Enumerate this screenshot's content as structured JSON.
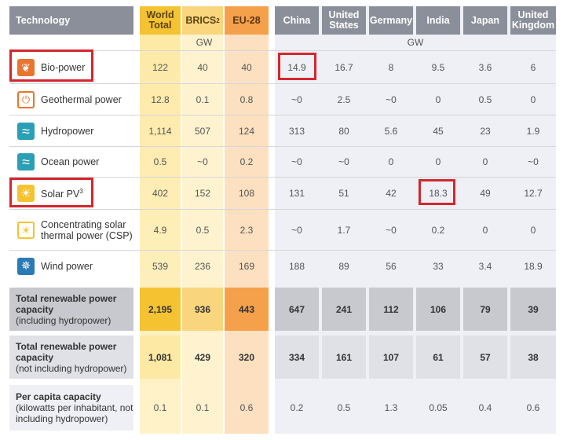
{
  "headers": {
    "technology": "Technology",
    "world": "World Total",
    "brics": "BRICS",
    "brics_sup": "2",
    "eu": "EU-28",
    "countries": [
      "China",
      "United States",
      "Germany",
      "India",
      "Japan",
      "United Kingdom"
    ]
  },
  "units": {
    "left": "GW",
    "right": "GW"
  },
  "rows": [
    {
      "label": "Bio-power",
      "sup": "",
      "icon": "leaf-icon",
      "values": [
        "122",
        "40",
        "40",
        "14.9",
        "16.7",
        "8",
        "9.5",
        "3.6",
        "6"
      ]
    },
    {
      "label": "Geothermal power",
      "sup": "",
      "icon": "geothermal-icon",
      "values": [
        "12.8",
        "0.1",
        "0.8",
        "~0",
        "2.5",
        "~0",
        "0",
        "0.5",
        "0"
      ]
    },
    {
      "label": "Hydropower",
      "sup": "",
      "icon": "water-waves-icon",
      "values": [
        "1,114",
        "507",
        "124",
        "313",
        "80",
        "5.6",
        "45",
        "23",
        "1.9"
      ]
    },
    {
      "label": "Ocean power",
      "sup": "",
      "icon": "ocean-waves-icon",
      "values": [
        "0.5",
        "~0",
        "0.2",
        "~0",
        "~0",
        "0",
        "0",
        "0",
        "~0"
      ]
    },
    {
      "label": "Solar PV",
      "sup": "3",
      "icon": "sun-icon",
      "values": [
        "402",
        "152",
        "108",
        "131",
        "51",
        "42",
        "18.3",
        "49",
        "12.7"
      ]
    },
    {
      "label": "Concentrating solar thermal power (CSP)",
      "sup": "",
      "icon": "csp-sun-icon",
      "values": [
        "4.9",
        "0.5",
        "2.3",
        "~0",
        "1.7",
        "~0",
        "0.2",
        "0",
        "0"
      ]
    },
    {
      "label": "Wind power",
      "sup": "",
      "icon": "wind-turbine-icon",
      "values": [
        "539",
        "236",
        "169",
        "188",
        "89",
        "56",
        "33",
        "3.4",
        "18.9"
      ]
    }
  ],
  "totals": [
    {
      "title": "Total renewable power capacity",
      "note": "(including hydropower)",
      "values": [
        "2,195",
        "936",
        "443",
        "647",
        "241",
        "112",
        "106",
        "79",
        "39"
      ]
    },
    {
      "title": "Total renewable power capacity",
      "note": "(not including hydropower)",
      "values": [
        "1,081",
        "429",
        "320",
        "334",
        "161",
        "107",
        "61",
        "57",
        "38"
      ]
    },
    {
      "title": "Per capita capacity",
      "note": "(kilowatts per inhabitant, not including hydropower)",
      "values": [
        "0.1",
        "0.1",
        "0.6",
        "0.2",
        "0.5",
        "1.3",
        "0.05",
        "0.4",
        "0.6"
      ]
    }
  ],
  "colors": {
    "highlight": "#d3272e",
    "world": "#f5c332",
    "brics": "#f9d57d",
    "eu": "#f5a04b",
    "header_grey": "#8b8f99"
  }
}
